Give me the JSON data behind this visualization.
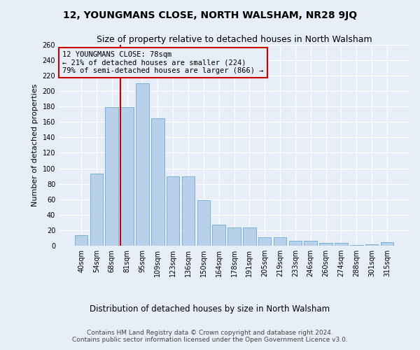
{
  "title": "12, YOUNGMANS CLOSE, NORTH WALSHAM, NR28 9JQ",
  "subtitle": "Size of property relative to detached houses in North Walsham",
  "xlabel": "Distribution of detached houses by size in North Walsham",
  "ylabel": "Number of detached properties",
  "bar_labels": [
    "40sqm",
    "54sqm",
    "68sqm",
    "81sqm",
    "95sqm",
    "109sqm",
    "123sqm",
    "136sqm",
    "150sqm",
    "164sqm",
    "178sqm",
    "191sqm",
    "205sqm",
    "219sqm",
    "233sqm",
    "246sqm",
    "260sqm",
    "274sqm",
    "288sqm",
    "301sqm",
    "315sqm"
  ],
  "bar_values": [
    13,
    93,
    179,
    179,
    210,
    165,
    90,
    90,
    59,
    27,
    23,
    23,
    11,
    11,
    6,
    6,
    3,
    3,
    1,
    2,
    4
  ],
  "bar_color": "#b8d0ea",
  "bar_edgecolor": "#6aaad4",
  "background_color": "#e8eef8",
  "grid_color": "#ffffff",
  "vline_pos": 2.55,
  "vline_color": "#cc0000",
  "annotation_text": "12 YOUNGMANS CLOSE: 78sqm\n← 21% of detached houses are smaller (224)\n79% of semi-detached houses are larger (866) →",
  "annotation_box_color": "#cc0000",
  "ylim": [
    0,
    260
  ],
  "yticks": [
    0,
    20,
    40,
    60,
    80,
    100,
    120,
    140,
    160,
    180,
    200,
    220,
    240,
    260
  ],
  "footer1": "Contains HM Land Registry data © Crown copyright and database right 2024.",
  "footer2": "Contains public sector information licensed under the Open Government Licence v3.0.",
  "title_fontsize": 10,
  "subtitle_fontsize": 9,
  "xlabel_fontsize": 8.5,
  "ylabel_fontsize": 8,
  "tick_fontsize": 7,
  "annotation_fontsize": 7.5,
  "footer_fontsize": 6.5
}
